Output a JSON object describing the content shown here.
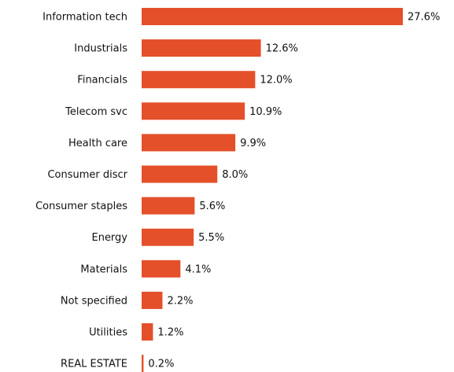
{
  "chart_data": {
    "type": "bar",
    "orientation": "horizontal",
    "color": "#e4502a",
    "categories": [
      "Information tech",
      "Industrials",
      "Financials",
      "Telecom svc",
      "Health care",
      "Consumer discr",
      "Consumer staples",
      "Energy",
      "Materials",
      "Not specified",
      "Utilities",
      "REAL ESTATE"
    ],
    "values": [
      27.6,
      12.6,
      12.0,
      10.9,
      9.9,
      8.0,
      5.6,
      5.5,
      4.1,
      2.2,
      1.2,
      0.2
    ],
    "value_labels": [
      "27.6%",
      "12.6%",
      "12.0%",
      "10.9%",
      "9.9%",
      "8.0%",
      "5.6%",
      "5.5%",
      "4.1%",
      "2.2%",
      "1.2%",
      "0.2%"
    ]
  }
}
